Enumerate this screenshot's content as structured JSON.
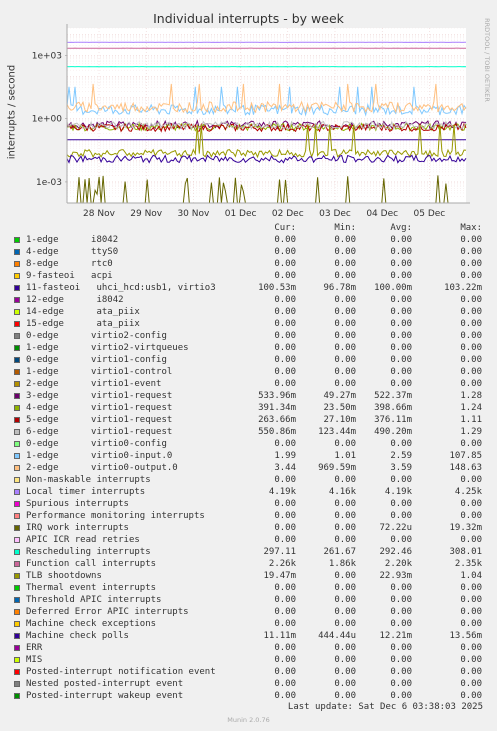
{
  "chart_data": {
    "type": "line",
    "title": "Individual interrupts - by week",
    "ylabel": "interrupts / second",
    "yscale": "log",
    "ylim": [
      0.0001,
      20000
    ],
    "yticks": [
      "1e+03",
      "1e+00",
      "1e-03"
    ],
    "xticks": [
      "28 Nov",
      "29 Nov",
      "30 Nov",
      "01 Dec",
      "02 Dec",
      "03 Dec",
      "04 Dec",
      "05 Dec"
    ],
    "watermark": "RRDTOOL / TOBI OETIKER",
    "columns": [
      "Cur:",
      "Min:",
      "Avg:",
      "Max:"
    ],
    "series": [
      {
        "name": "1-edge      i8042",
        "color": "#00cc00",
        "cur": "0.00",
        "min": "0.00",
        "avg": "0.00",
        "max": "0.00"
      },
      {
        "name": "4-edge      ttyS0",
        "color": "#0066b3",
        "cur": "0.00",
        "min": "0.00",
        "avg": "0.00",
        "max": "0.00"
      },
      {
        "name": "8-edge      rtc0",
        "color": "#ff8000",
        "cur": "0.00",
        "min": "0.00",
        "avg": "0.00",
        "max": "0.00"
      },
      {
        "name": "9-fasteoi   acpi",
        "color": "#ffcc00",
        "cur": "0.00",
        "min": "0.00",
        "avg": "0.00",
        "max": "0.00"
      },
      {
        "name": "11-fasteoi   uhci_hcd:usb1, virtio3",
        "color": "#330099",
        "cur": "100.53m",
        "min": "96.78m",
        "avg": "100.00m",
        "max": "103.22m"
      },
      {
        "name": "12-edge      i8042",
        "color": "#990099",
        "cur": "0.00",
        "min": "0.00",
        "avg": "0.00",
        "max": "0.00"
      },
      {
        "name": "14-edge      ata_piix",
        "color": "#ccff00",
        "cur": "0.00",
        "min": "0.00",
        "avg": "0.00",
        "max": "0.00"
      },
      {
        "name": "15-edge      ata_piix",
        "color": "#ff0000",
        "cur": "0.00",
        "min": "0.00",
        "avg": "0.00",
        "max": "0.00"
      },
      {
        "name": "0-edge      virtio2-config",
        "color": "#808080",
        "cur": "0.00",
        "min": "0.00",
        "avg": "0.00",
        "max": "0.00"
      },
      {
        "name": "1-edge      virtio2-virtqueues",
        "color": "#008f00",
        "cur": "0.00",
        "min": "0.00",
        "avg": "0.00",
        "max": "0.00"
      },
      {
        "name": "0-edge      virtio1-config",
        "color": "#00487d",
        "cur": "0.00",
        "min": "0.00",
        "avg": "0.00",
        "max": "0.00"
      },
      {
        "name": "1-edge      virtio1-control",
        "color": "#b35a00",
        "cur": "0.00",
        "min": "0.00",
        "avg": "0.00",
        "max": "0.00"
      },
      {
        "name": "2-edge      virtio1-event",
        "color": "#b38f00",
        "cur": "0.00",
        "min": "0.00",
        "avg": "0.00",
        "max": "0.00"
      },
      {
        "name": "3-edge      virtio1-request",
        "color": "#6b006b",
        "cur": "533.96m",
        "min": "49.27m",
        "avg": "522.37m",
        "max": "1.28"
      },
      {
        "name": "4-edge      virtio1-request",
        "color": "#8fb300",
        "cur": "391.34m",
        "min": "23.50m",
        "avg": "398.66m",
        "max": "1.24"
      },
      {
        "name": "5-edge      virtio1-request",
        "color": "#b30000",
        "cur": "263.66m",
        "min": "27.10m",
        "avg": "376.11m",
        "max": "1.11"
      },
      {
        "name": "6-edge      virtio1-request",
        "color": "#bebebe",
        "cur": "550.86m",
        "min": "123.44m",
        "avg": "490.20m",
        "max": "1.29"
      },
      {
        "name": "0-edge      virtio0-config",
        "color": "#80ff80",
        "cur": "0.00",
        "min": "0.00",
        "avg": "0.00",
        "max": "0.00"
      },
      {
        "name": "1-edge      virtio0-input.0",
        "color": "#80c9ff",
        "cur": "1.99",
        "min": "1.01",
        "avg": "2.59",
        "max": "107.85"
      },
      {
        "name": "2-edge      virtio0-output.0",
        "color": "#ffc080",
        "cur": "3.44",
        "min": "969.59m",
        "avg": "3.59",
        "max": "148.63"
      },
      {
        "name": "Non-maskable interrupts",
        "color": "#ffe680",
        "cur": "0.00",
        "min": "0.00",
        "avg": "0.00",
        "max": "0.00"
      },
      {
        "name": "Local timer interrupts",
        "color": "#aa80ff",
        "cur": "4.19k",
        "min": "4.16k",
        "avg": "4.19k",
        "max": "4.25k"
      },
      {
        "name": "Spurious interrupts",
        "color": "#ee00cc",
        "cur": "0.00",
        "min": "0.00",
        "avg": "0.00",
        "max": "0.00"
      },
      {
        "name": "Performance monitoring interrupts",
        "color": "#ff8080",
        "cur": "0.00",
        "min": "0.00",
        "avg": "0.00",
        "max": "0.00"
      },
      {
        "name": "IRQ work interrupts",
        "color": "#666600",
        "cur": "0.00",
        "min": "0.00",
        "avg": "72.22u",
        "max": "19.32m"
      },
      {
        "name": "APIC ICR read retries",
        "color": "#ffbfff",
        "cur": "0.00",
        "min": "0.00",
        "avg": "0.00",
        "max": "0.00"
      },
      {
        "name": "Rescheduling interrupts",
        "color": "#00ffcc",
        "cur": "297.11",
        "min": "261.67",
        "avg": "292.46",
        "max": "308.01"
      },
      {
        "name": "Function call interrupts",
        "color": "#cc6699",
        "cur": "2.26k",
        "min": "1.86k",
        "avg": "2.20k",
        "max": "2.35k"
      },
      {
        "name": "TLB shootdowns",
        "color": "#999900",
        "cur": "19.47m",
        "min": "0.00",
        "avg": "22.93m",
        "max": "1.04"
      },
      {
        "name": "Thermal event interrupts",
        "color": "#00cc00",
        "cur": "0.00",
        "min": "0.00",
        "avg": "0.00",
        "max": "0.00"
      },
      {
        "name": "Threshold APIC interrupts",
        "color": "#0066b3",
        "cur": "0.00",
        "min": "0.00",
        "avg": "0.00",
        "max": "0.00"
      },
      {
        "name": "Deferred Error APIC interrupts",
        "color": "#ff8000",
        "cur": "0.00",
        "min": "0.00",
        "avg": "0.00",
        "max": "0.00"
      },
      {
        "name": "Machine check exceptions",
        "color": "#ffcc00",
        "cur": "0.00",
        "min": "0.00",
        "avg": "0.00",
        "max": "0.00"
      },
      {
        "name": "Machine check polls",
        "color": "#330099",
        "cur": "11.11m",
        "min": "444.44u",
        "avg": "12.21m",
        "max": "13.56m"
      },
      {
        "name": "ERR",
        "color": "#990099",
        "cur": "0.00",
        "min": "0.00",
        "avg": "0.00",
        "max": "0.00"
      },
      {
        "name": "MIS",
        "color": "#ccff00",
        "cur": "0.00",
        "min": "0.00",
        "avg": "0.00",
        "max": "0.00"
      },
      {
        "name": "Posted-interrupt notification event",
        "color": "#ff0000",
        "cur": "0.00",
        "min": "0.00",
        "avg": "0.00",
        "max": "0.00"
      },
      {
        "name": "Nested posted-interrupt event",
        "color": "#808080",
        "cur": "0.00",
        "min": "0.00",
        "avg": "0.00",
        "max": "0.00"
      },
      {
        "name": "Posted-interrupt wakeup event",
        "color": "#008f00",
        "cur": "0.00",
        "min": "0.00",
        "avg": "0.00",
        "max": "0.00"
      }
    ]
  },
  "last_update": "Last update: Sat Dec  6 03:38:03 2025",
  "footer": "Munin 2.0.76"
}
